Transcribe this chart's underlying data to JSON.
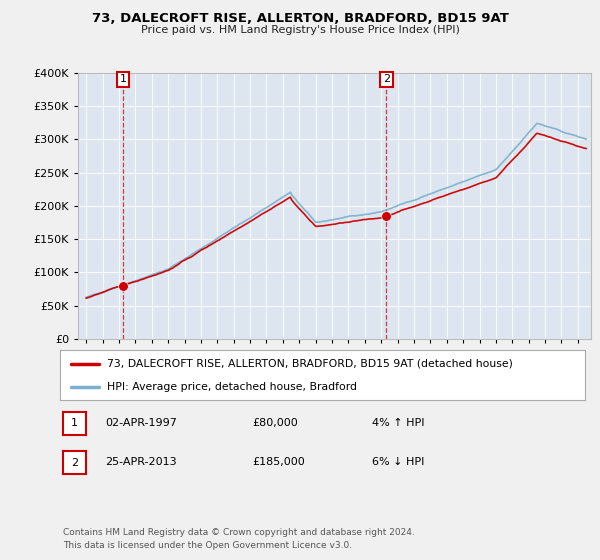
{
  "title": "73, DALECROFT RISE, ALLERTON, BRADFORD, BD15 9AT",
  "subtitle": "Price paid vs. HM Land Registry's House Price Index (HPI)",
  "legend_label_red": "73, DALECROFT RISE, ALLERTON, BRADFORD, BD15 9AT (detached house)",
  "legend_label_blue": "HPI: Average price, detached house, Bradford",
  "transactions": [
    {
      "num": 1,
      "date": "02-APR-1997",
      "price": "£80,000",
      "hpi": "4% ↑ HPI",
      "year": 1997.25
    },
    {
      "num": 2,
      "date": "25-APR-2013",
      "price": "£185,000",
      "hpi": "6% ↓ HPI",
      "year": 2013.32
    }
  ],
  "sale_prices": [
    80000,
    185000
  ],
  "sale_years": [
    1997.25,
    2013.32
  ],
  "footnote": "Contains HM Land Registry data © Crown copyright and database right 2024.\nThis data is licensed under the Open Government Licence v3.0.",
  "ylim": [
    0,
    400000
  ],
  "yticks": [
    0,
    50000,
    100000,
    150000,
    200000,
    250000,
    300000,
    350000,
    400000
  ],
  "xlim": [
    1994.5,
    2025.8
  ],
  "red_color": "#cc0000",
  "blue_color": "#7aafcc",
  "fig_bg": "#f0f0f0",
  "plot_bg": "#dde6f0"
}
